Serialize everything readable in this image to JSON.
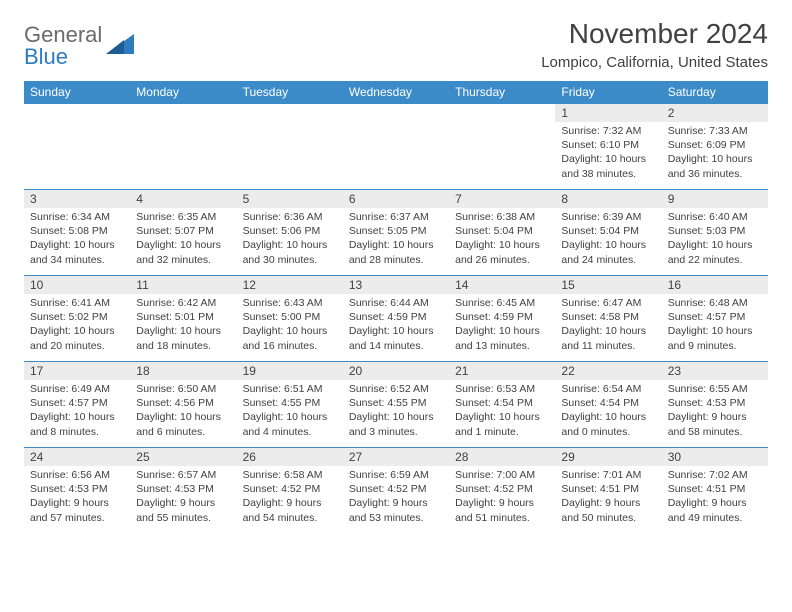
{
  "logo": {
    "word1": "General",
    "word2": "Blue"
  },
  "title": "November 2024",
  "subtitle": "Lompico, California, United States",
  "style": {
    "header_bg": "#3b8bc8",
    "header_text": "#ffffff",
    "daynum_bg": "#ececec",
    "cell_border": "#3b8bc8",
    "text_color": "#414141",
    "logo_gray": "#6b6b6b",
    "logo_blue": "#2f7bbf",
    "background": "#ffffff",
    "title_fontsize": 28,
    "subtitle_fontsize": 15,
    "th_fontsize": 12,
    "daynum_fontsize": 12,
    "body_fontsize": 10.5
  },
  "day_headers": [
    "Sunday",
    "Monday",
    "Tuesday",
    "Wednesday",
    "Thursday",
    "Friday",
    "Saturday"
  ],
  "weeks": [
    [
      null,
      null,
      null,
      null,
      null,
      {
        "n": "1",
        "sr": "Sunrise: 7:32 AM",
        "ss": "Sunset: 6:10 PM",
        "dl": "Daylight: 10 hours and 38 minutes."
      },
      {
        "n": "2",
        "sr": "Sunrise: 7:33 AM",
        "ss": "Sunset: 6:09 PM",
        "dl": "Daylight: 10 hours and 36 minutes."
      }
    ],
    [
      {
        "n": "3",
        "sr": "Sunrise: 6:34 AM",
        "ss": "Sunset: 5:08 PM",
        "dl": "Daylight: 10 hours and 34 minutes."
      },
      {
        "n": "4",
        "sr": "Sunrise: 6:35 AM",
        "ss": "Sunset: 5:07 PM",
        "dl": "Daylight: 10 hours and 32 minutes."
      },
      {
        "n": "5",
        "sr": "Sunrise: 6:36 AM",
        "ss": "Sunset: 5:06 PM",
        "dl": "Daylight: 10 hours and 30 minutes."
      },
      {
        "n": "6",
        "sr": "Sunrise: 6:37 AM",
        "ss": "Sunset: 5:05 PM",
        "dl": "Daylight: 10 hours and 28 minutes."
      },
      {
        "n": "7",
        "sr": "Sunrise: 6:38 AM",
        "ss": "Sunset: 5:04 PM",
        "dl": "Daylight: 10 hours and 26 minutes."
      },
      {
        "n": "8",
        "sr": "Sunrise: 6:39 AM",
        "ss": "Sunset: 5:04 PM",
        "dl": "Daylight: 10 hours and 24 minutes."
      },
      {
        "n": "9",
        "sr": "Sunrise: 6:40 AM",
        "ss": "Sunset: 5:03 PM",
        "dl": "Daylight: 10 hours and 22 minutes."
      }
    ],
    [
      {
        "n": "10",
        "sr": "Sunrise: 6:41 AM",
        "ss": "Sunset: 5:02 PM",
        "dl": "Daylight: 10 hours and 20 minutes."
      },
      {
        "n": "11",
        "sr": "Sunrise: 6:42 AM",
        "ss": "Sunset: 5:01 PM",
        "dl": "Daylight: 10 hours and 18 minutes."
      },
      {
        "n": "12",
        "sr": "Sunrise: 6:43 AM",
        "ss": "Sunset: 5:00 PM",
        "dl": "Daylight: 10 hours and 16 minutes."
      },
      {
        "n": "13",
        "sr": "Sunrise: 6:44 AM",
        "ss": "Sunset: 4:59 PM",
        "dl": "Daylight: 10 hours and 14 minutes."
      },
      {
        "n": "14",
        "sr": "Sunrise: 6:45 AM",
        "ss": "Sunset: 4:59 PM",
        "dl": "Daylight: 10 hours and 13 minutes."
      },
      {
        "n": "15",
        "sr": "Sunrise: 6:47 AM",
        "ss": "Sunset: 4:58 PM",
        "dl": "Daylight: 10 hours and 11 minutes."
      },
      {
        "n": "16",
        "sr": "Sunrise: 6:48 AM",
        "ss": "Sunset: 4:57 PM",
        "dl": "Daylight: 10 hours and 9 minutes."
      }
    ],
    [
      {
        "n": "17",
        "sr": "Sunrise: 6:49 AM",
        "ss": "Sunset: 4:57 PM",
        "dl": "Daylight: 10 hours and 8 minutes."
      },
      {
        "n": "18",
        "sr": "Sunrise: 6:50 AM",
        "ss": "Sunset: 4:56 PM",
        "dl": "Daylight: 10 hours and 6 minutes."
      },
      {
        "n": "19",
        "sr": "Sunrise: 6:51 AM",
        "ss": "Sunset: 4:55 PM",
        "dl": "Daylight: 10 hours and 4 minutes."
      },
      {
        "n": "20",
        "sr": "Sunrise: 6:52 AM",
        "ss": "Sunset: 4:55 PM",
        "dl": "Daylight: 10 hours and 3 minutes."
      },
      {
        "n": "21",
        "sr": "Sunrise: 6:53 AM",
        "ss": "Sunset: 4:54 PM",
        "dl": "Daylight: 10 hours and 1 minute."
      },
      {
        "n": "22",
        "sr": "Sunrise: 6:54 AM",
        "ss": "Sunset: 4:54 PM",
        "dl": "Daylight: 10 hours and 0 minutes."
      },
      {
        "n": "23",
        "sr": "Sunrise: 6:55 AM",
        "ss": "Sunset: 4:53 PM",
        "dl": "Daylight: 9 hours and 58 minutes."
      }
    ],
    [
      {
        "n": "24",
        "sr": "Sunrise: 6:56 AM",
        "ss": "Sunset: 4:53 PM",
        "dl": "Daylight: 9 hours and 57 minutes."
      },
      {
        "n": "25",
        "sr": "Sunrise: 6:57 AM",
        "ss": "Sunset: 4:53 PM",
        "dl": "Daylight: 9 hours and 55 minutes."
      },
      {
        "n": "26",
        "sr": "Sunrise: 6:58 AM",
        "ss": "Sunset: 4:52 PM",
        "dl": "Daylight: 9 hours and 54 minutes."
      },
      {
        "n": "27",
        "sr": "Sunrise: 6:59 AM",
        "ss": "Sunset: 4:52 PM",
        "dl": "Daylight: 9 hours and 53 minutes."
      },
      {
        "n": "28",
        "sr": "Sunrise: 7:00 AM",
        "ss": "Sunset: 4:52 PM",
        "dl": "Daylight: 9 hours and 51 minutes."
      },
      {
        "n": "29",
        "sr": "Sunrise: 7:01 AM",
        "ss": "Sunset: 4:51 PM",
        "dl": "Daylight: 9 hours and 50 minutes."
      },
      {
        "n": "30",
        "sr": "Sunrise: 7:02 AM",
        "ss": "Sunset: 4:51 PM",
        "dl": "Daylight: 9 hours and 49 minutes."
      }
    ]
  ]
}
